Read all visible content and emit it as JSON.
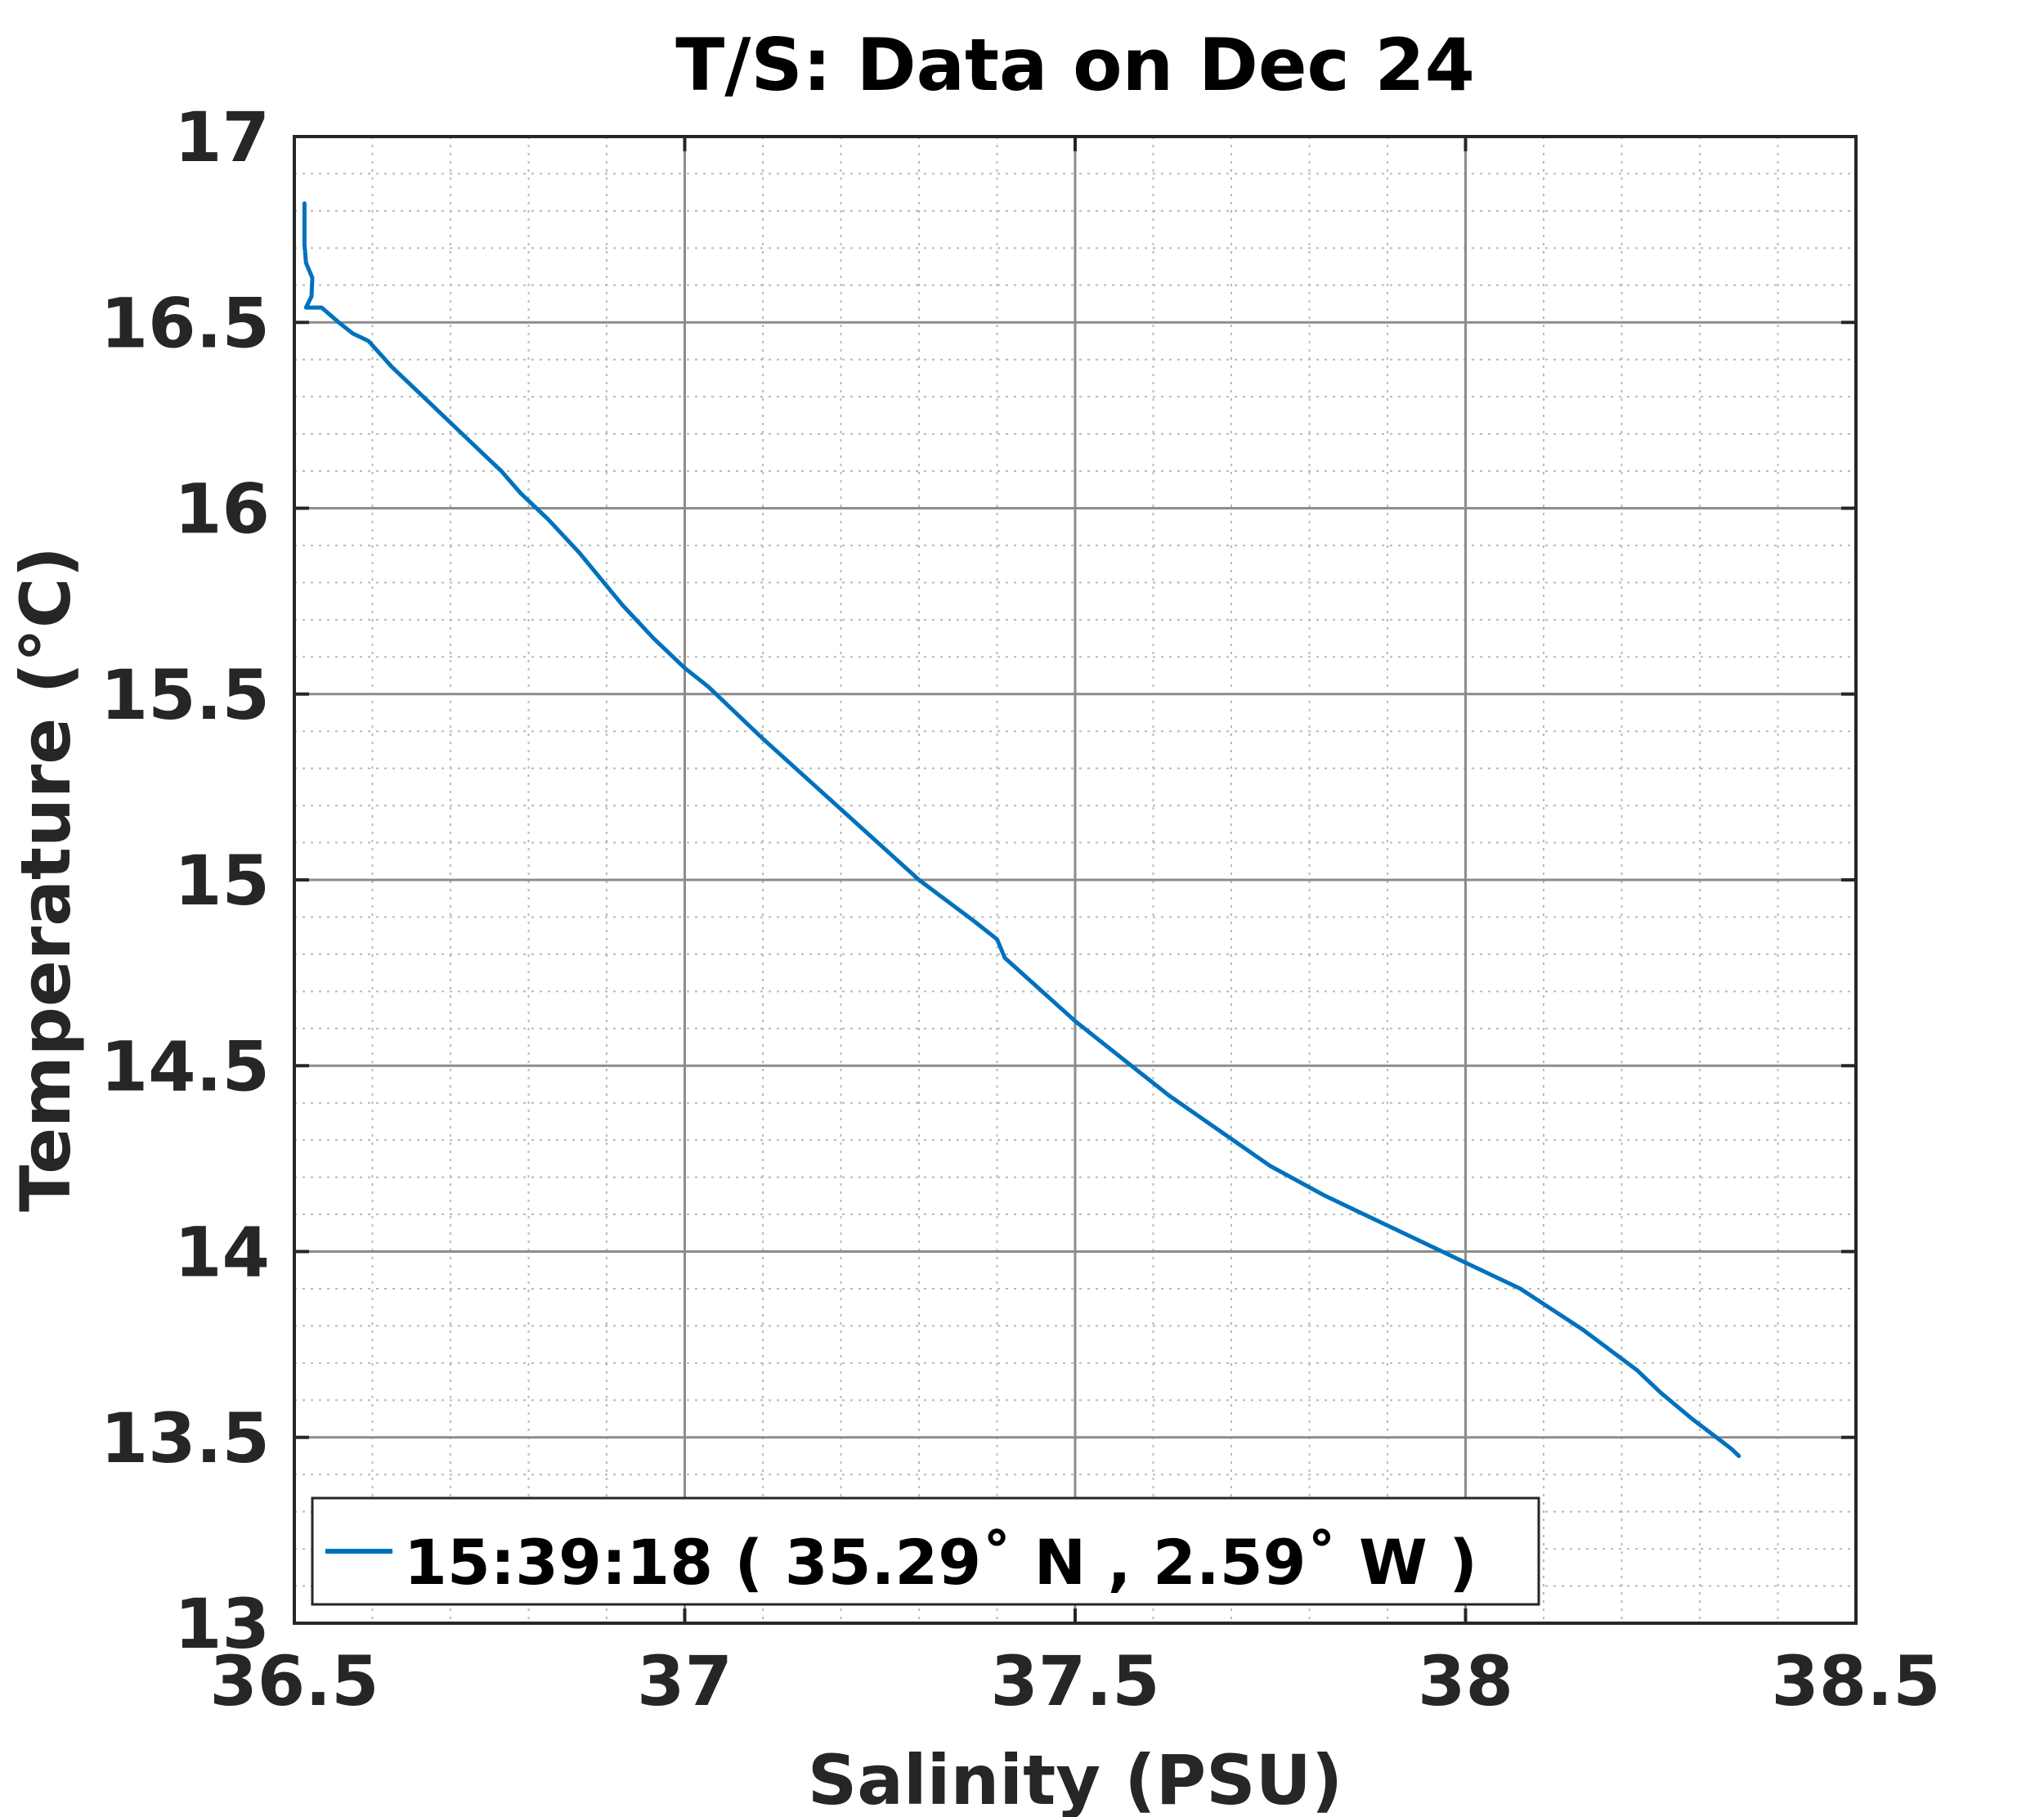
{
  "chart_data": {
    "type": "line",
    "title": "T/S: Data on Dec 24",
    "xlabel": "Salinity (PSU)",
    "ylabel": "Temperature (°C)",
    "xlim": [
      36.5,
      38.5
    ],
    "ylim": [
      13,
      17
    ],
    "xticks": [
      "36.5",
      "37",
      "37.5",
      "38",
      "38.5"
    ],
    "yticks": [
      "13",
      "13.5",
      "14",
      "14.5",
      "15",
      "15.5",
      "16",
      "16.5",
      "17"
    ],
    "grid": "major and minor",
    "legend_position": "bottom-left",
    "series": [
      {
        "name": "15:39:18 ( 35.29˚ N , 2.59˚ W )",
        "color": "#0072BD",
        "x": [
          36.513,
          36.513,
          36.515,
          36.523,
          36.522,
          36.515,
          36.535,
          36.557,
          36.575,
          36.595,
          36.625,
          36.665,
          36.705,
          36.745,
          36.765,
          36.79,
          36.825,
          36.865,
          36.92,
          36.96,
          37.0,
          37.03,
          37.1,
          37.2,
          37.3,
          37.37,
          37.4,
          37.41,
          37.5,
          37.62,
          37.75,
          37.82,
          37.85,
          37.93,
          38.07,
          38.15,
          38.22,
          38.25,
          38.29,
          38.34,
          38.35
        ],
        "y": [
          16.82,
          16.71,
          16.66,
          16.62,
          16.57,
          16.54,
          16.54,
          16.5,
          16.47,
          16.45,
          16.38,
          16.3,
          16.22,
          16.14,
          16.1,
          16.04,
          15.97,
          15.88,
          15.74,
          15.65,
          15.57,
          15.52,
          15.38,
          15.19,
          15.0,
          14.89,
          14.84,
          14.79,
          14.62,
          14.42,
          14.23,
          14.15,
          14.12,
          14.04,
          13.9,
          13.79,
          13.68,
          13.62,
          13.55,
          13.47,
          13.45
        ]
      }
    ]
  }
}
